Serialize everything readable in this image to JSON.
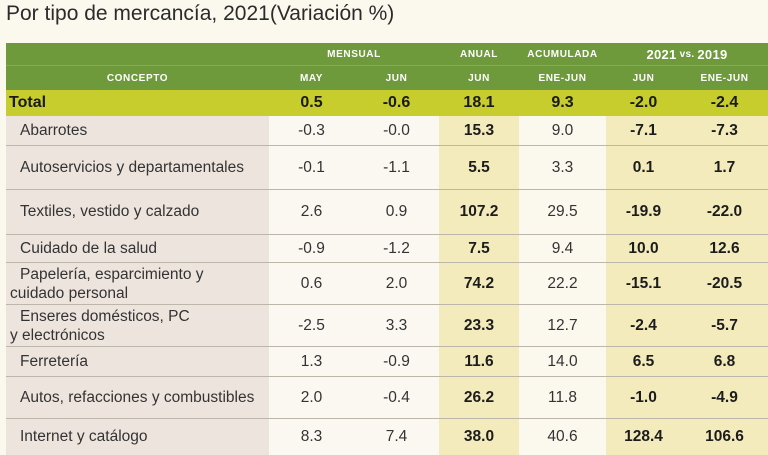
{
  "title": "Por tipo de mercancía, 2021(Variación %)",
  "header": {
    "mensual": "MENSUAL",
    "anual": "ANUAL",
    "acumulada": "ACUMULADA",
    "y2021": "2021",
    "vs": "vs.",
    "y2019": "2019",
    "concepto": "CONCEPTO",
    "may": "MAY",
    "jun": "JUN",
    "jun_anual": "JUN",
    "ene_jun": "ENE-JUN",
    "jun_2019": "JUN",
    "ene_jun_2019": "ENE-JUN"
  },
  "total": {
    "label": "Total",
    "may": "0.5",
    "jun": "-0.6",
    "anual_jun": "18.1",
    "acum": "9.3",
    "vs_jun": "-2.0",
    "vs_ene_jun": "-2.4"
  },
  "rows": [
    {
      "label": "Abarrotes",
      "may": "-0.3",
      "jun": "-0.0",
      "anual_jun": "15.3",
      "acum": "9.0",
      "vs_jun": "-7.1",
      "vs_ene_jun": "-7.3"
    },
    {
      "label": "Autoservicios y departamentales",
      "may": "-0.1",
      "jun": "-1.1",
      "anual_jun": "5.5",
      "acum": "3.3",
      "vs_jun": "0.1",
      "vs_ene_jun": "1.7"
    },
    {
      "label": "Textiles, vestido y calzado",
      "may": "2.6",
      "jun": "0.9",
      "anual_jun": "107.2",
      "acum": "29.5",
      "vs_jun": "-19.9",
      "vs_ene_jun": "-22.0"
    },
    {
      "label": "Cuidado de la salud",
      "may": "-0.9",
      "jun": "-1.2",
      "anual_jun": "7.5",
      "acum": "9.4",
      "vs_jun": "10.0",
      "vs_ene_jun": "12.6"
    },
    {
      "label_line1": "Papelería, esparcimiento y",
      "label_line2": "cuidado personal",
      "may": "0.6",
      "jun": "2.0",
      "anual_jun": "74.2",
      "acum": "22.2",
      "vs_jun": "-15.1",
      "vs_ene_jun": "-20.5"
    },
    {
      "label_line1": "Enseres domésticos, PC",
      "label_line2": "y electrónicos",
      "may": "-2.5",
      "jun": "3.3",
      "anual_jun": "23.3",
      "acum": "12.7",
      "vs_jun": "-2.4",
      "vs_ene_jun": "-5.7"
    },
    {
      "label": "Ferretería",
      "may": "1.3",
      "jun": "-0.9",
      "anual_jun": "11.6",
      "acum": "14.0",
      "vs_jun": "6.5",
      "vs_ene_jun": "6.8"
    },
    {
      "label": "Autos, refacciones y combustibles",
      "may": "2.0",
      "jun": "-0.4",
      "anual_jun": "26.2",
      "acum": "11.8",
      "vs_jun": "-1.0",
      "vs_ene_jun": "-4.9"
    },
    {
      "label": "Internet y catálogo",
      "may": "8.3",
      "jun": "7.4",
      "anual_jun": "38.0",
      "acum": "40.6",
      "vs_jun": "128.4",
      "vs_ene_jun": "106.6"
    }
  ]
}
